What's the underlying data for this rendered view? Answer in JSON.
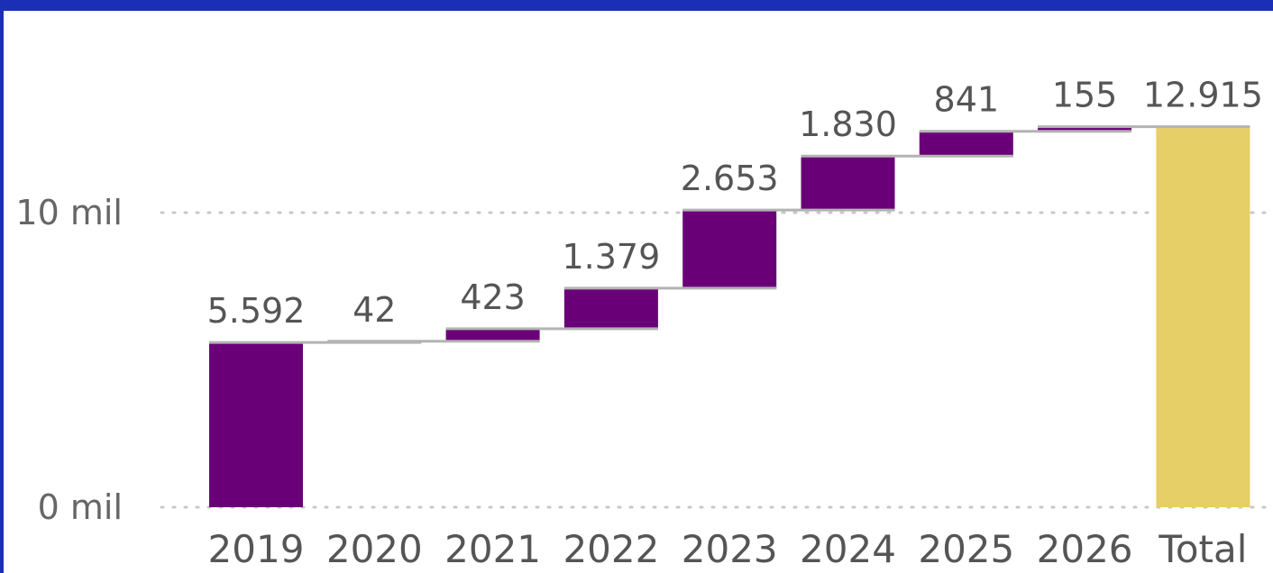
{
  "chart_data": {
    "type": "waterfall",
    "categories": [
      "2019",
      "2020",
      "2021",
      "2022",
      "2023",
      "2024",
      "2025",
      "2026",
      "Total"
    ],
    "values": [
      5592,
      42,
      423,
      1379,
      2653,
      1830,
      841,
      155,
      12915
    ],
    "data_labels": [
      "5.592",
      "42",
      "423",
      "1.379",
      "2.653",
      "1.830",
      "841",
      "155",
      "12.915"
    ],
    "y_ticks": [
      {
        "value": 0,
        "label": "0 mil"
      },
      {
        "value": 10000,
        "label": "10 mil"
      }
    ],
    "ylim": [
      0,
      12915
    ],
    "grid": true,
    "colors": {
      "increase": "#6a0078",
      "total": "#e6cf66",
      "connector": "#b3b3b3",
      "grid": "#c8c8c8",
      "frame": "#1a2fb5"
    }
  }
}
